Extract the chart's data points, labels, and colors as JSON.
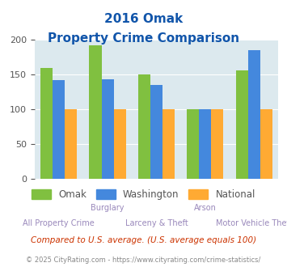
{
  "title_line1": "2016 Omak",
  "title_line2": "Property Crime Comparison",
  "categories": [
    "All Property Crime",
    "Burglary",
    "Larceny & Theft",
    "Arson",
    "Motor Vehicle Theft"
  ],
  "x_labels_top": [
    "",
    "Burglary",
    "",
    "Arson",
    ""
  ],
  "x_labels_bottom": [
    "All Property Crime",
    "",
    "Larceny & Theft",
    "",
    "Motor Vehicle Theft"
  ],
  "series": {
    "Omak": [
      160,
      193,
      151,
      100,
      156
    ],
    "Washington": [
      142,
      144,
      135,
      100,
      186
    ],
    "National": [
      100,
      100,
      100,
      100,
      100
    ]
  },
  "colors": {
    "Omak": "#80c040",
    "Washington": "#4488dd",
    "National": "#ffaa33"
  },
  "ylim": [
    0,
    200
  ],
  "yticks": [
    0,
    50,
    100,
    150,
    200
  ],
  "bar_width": 0.25,
  "background_color": "#dce9ee",
  "title_color": "#1155aa",
  "footnote1": "Compared to U.S. average. (U.S. average equals 100)",
  "footnote2": "© 2025 CityRating.com - https://www.cityrating.com/crime-statistics/",
  "footnote1_color": "#cc3300",
  "footnote2_color": "#888888"
}
